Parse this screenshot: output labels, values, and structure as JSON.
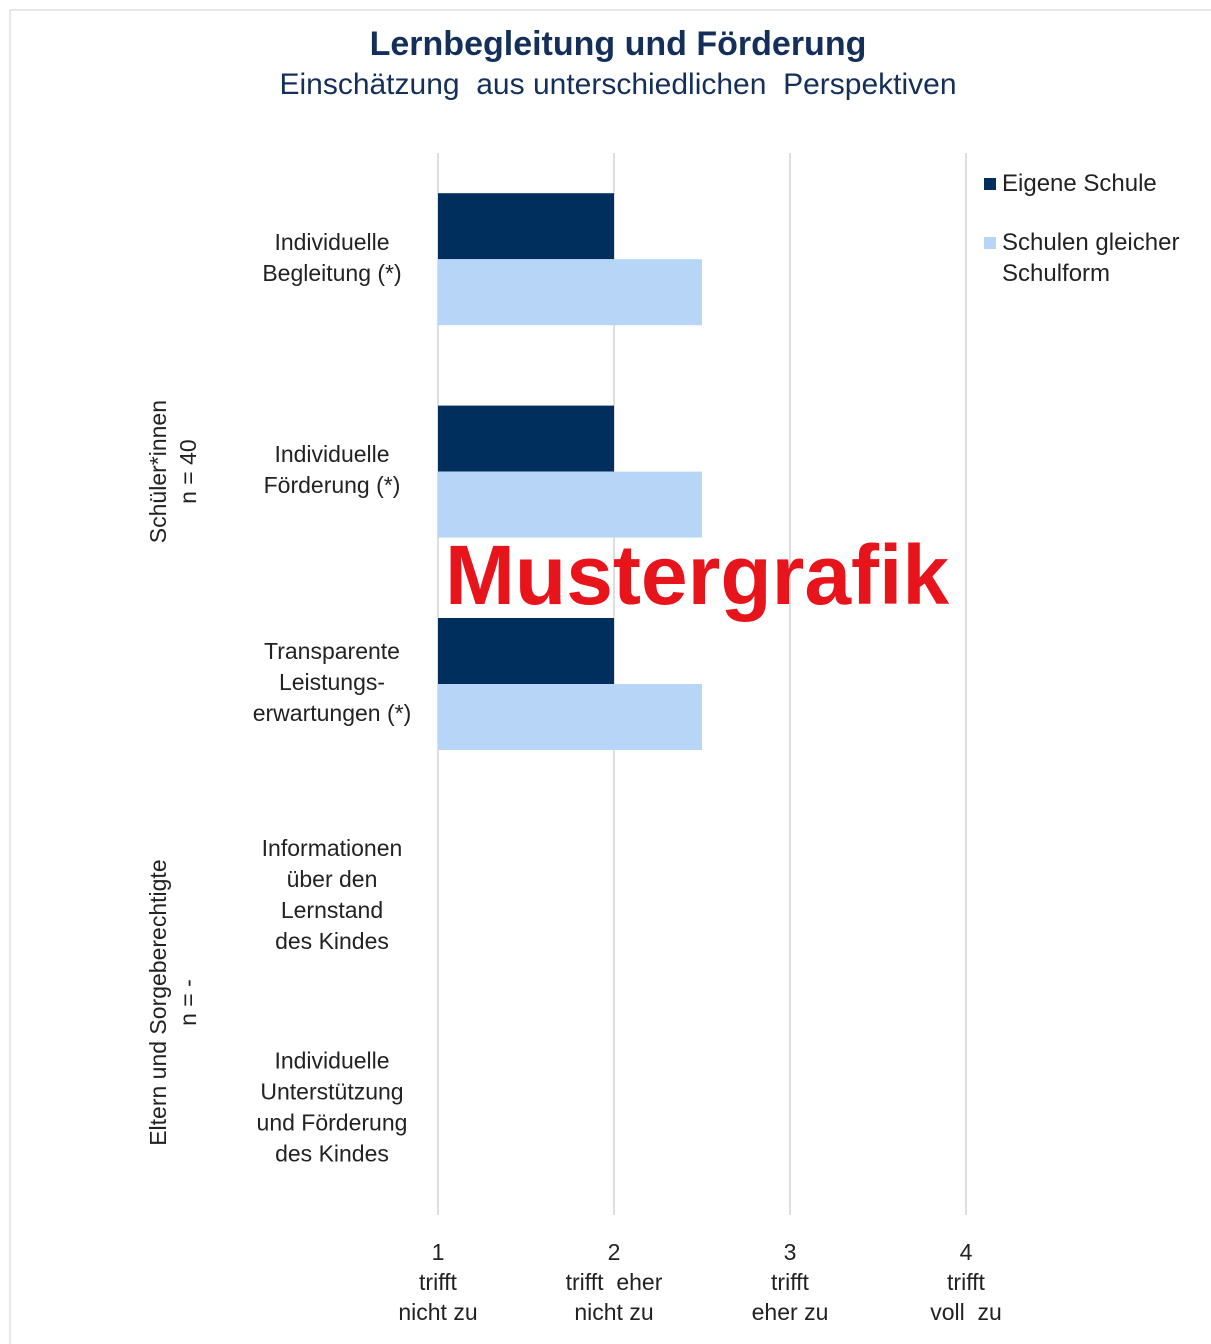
{
  "chart_data": {
    "type": "bar",
    "orientation": "horizontal",
    "title": "Lernbegleitung und Förderung",
    "subtitle": "Einschätzung  aus unterschiedlichen  Perspektiven",
    "categories": [
      "Individuelle\nBegleitung (*)",
      "Individuelle\nFörderung (*)",
      "Transparente\nLeistungs-\nerwartungen (*)",
      "Informationen\nüber den\nLernstand\ndes Kindes",
      "Individuelle\nUnterstützung\nund Förderung\ndes Kindes"
    ],
    "groups": [
      {
        "label": "Schüler*innen\nn = 40"
      },
      {
        "label": "Eltern und Sorgeberechtigte\nn = -"
      }
    ],
    "series": [
      {
        "name": "Eigene Schule",
        "color": "#002f5e",
        "values": [
          2,
          2,
          2,
          null,
          null
        ]
      },
      {
        "name": "Schulen gleicher Schulform",
        "color": "#b7d6f7",
        "values": [
          2.5,
          2.5,
          2.5,
          null,
          null
        ]
      }
    ],
    "xlim": [
      1,
      4
    ],
    "xticks": [
      {
        "value": 1,
        "label": "1\ntrifft\nnicht zu"
      },
      {
        "value": 2,
        "label": "2\ntrifft  eher\nnicht zu"
      },
      {
        "value": 3,
        "label": "3\ntrifft\neher zu"
      },
      {
        "value": 4,
        "label": "4\ntrifft\nvoll  zu"
      }
    ],
    "grid": true,
    "legend": "top-right",
    "watermark": "Mustergrafik"
  }
}
